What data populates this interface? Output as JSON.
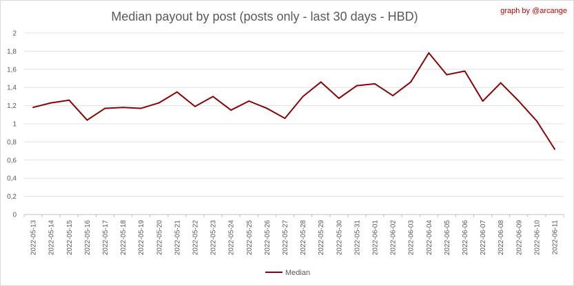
{
  "credit": "graph by @arcange",
  "chart_data": {
    "type": "line",
    "title": "Median payout by post (posts only - last 30 days - HBD)",
    "xlabel": "",
    "ylabel": "",
    "ylim": [
      0,
      2
    ],
    "yticks": [
      "0",
      "0,2",
      "0,4",
      "0,6",
      "0,8",
      "1",
      "1,2",
      "1,4",
      "1,6",
      "1,8",
      "2"
    ],
    "grid": true,
    "legend": "bottom-center",
    "color": "#8b0000",
    "categories": [
      "2022-05-13",
      "2022-05-14",
      "2022-05-15",
      "2022-05-16",
      "2022-05-17",
      "2022-05-18",
      "2022-05-19",
      "2022-05-20",
      "2022-05-21",
      "2022-05-22",
      "2022-05-23",
      "2022-05-24",
      "2022-05-25",
      "2022-05-26",
      "2022-05-27",
      "2022-05-28",
      "2022-05-29",
      "2022-05-30",
      "2022-05-31",
      "2022-06-01",
      "2022-06-02",
      "2022-06-03",
      "2022-06-04",
      "2022-06-05",
      "2022-06-06",
      "2022-06-07",
      "2022-06-08",
      "2022-06-09",
      "2022-06-10",
      "2022-06-11"
    ],
    "series": [
      {
        "name": "Median",
        "values": [
          1.18,
          1.23,
          1.26,
          1.04,
          1.17,
          1.18,
          1.17,
          1.23,
          1.35,
          1.19,
          1.3,
          1.15,
          1.25,
          1.17,
          1.06,
          1.3,
          1.46,
          1.28,
          1.42,
          1.44,
          1.31,
          1.46,
          1.78,
          1.54,
          1.58,
          1.25,
          1.45,
          1.25,
          1.03,
          0.72
        ]
      }
    ]
  }
}
